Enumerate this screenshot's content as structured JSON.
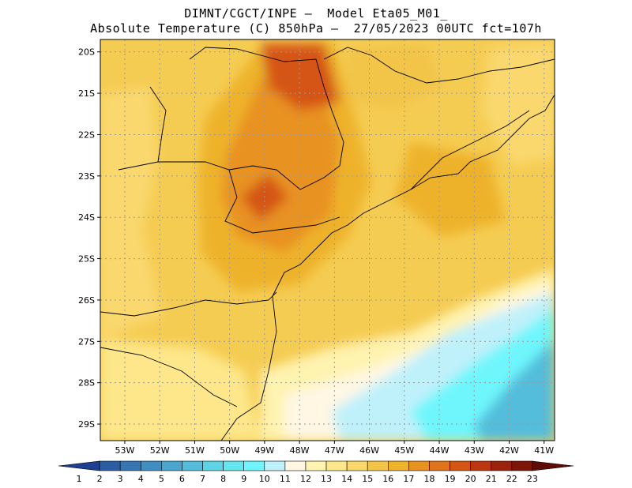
{
  "header": {
    "line1": "DIMNT/CGCT/INPE –  Model Eta05_M01_",
    "line2": "Absolute Temperature (C) 850hPa –  27/05/2023 00UTC fct=107h"
  },
  "map": {
    "region": "Southeast / South Brazil",
    "lat_labels": [
      "20S",
      "21S",
      "22S",
      "23S",
      "24S",
      "25S",
      "26S",
      "27S",
      "28S",
      "29S"
    ],
    "lon_labels": [
      "53W",
      "52W",
      "51W",
      "50W",
      "49W",
      "48W",
      "47W",
      "46W",
      "45W",
      "44W",
      "43W",
      "42W",
      "41W"
    ],
    "lat_range": [
      -29.4,
      -19.7
    ],
    "lon_range": [
      -53.7,
      -40.7
    ],
    "grid": "dotted"
  },
  "colorbar": {
    "labels": [
      "1",
      "2",
      "3",
      "4",
      "5",
      "6",
      "7",
      "8",
      "9",
      "10",
      "11",
      "12",
      "13",
      "14",
      "15",
      "16",
      "17",
      "18",
      "19",
      "20",
      "21",
      "22",
      "23"
    ],
    "colors": [
      "#1f3f93",
      "#2b5da5",
      "#3576b3",
      "#3f8fc2",
      "#4aa6cf",
      "#53bddb",
      "#5dd3e6",
      "#64e6ef",
      "#6ef6fc",
      "#bff1fb",
      "#fff7e4",
      "#fff3b0",
      "#fde78a",
      "#f9d76a",
      "#f2c548",
      "#eeb22b",
      "#e89220",
      "#e1741a",
      "#d55513",
      "#bc3710",
      "#9c220b",
      "#7f1507",
      "#5f0b08"
    ]
  },
  "fields": {
    "hot_core": "#d55513",
    "warm": "#e89220",
    "mild": "#f2c548",
    "cool": "#bff1fb",
    "cold": "#53bddb"
  }
}
